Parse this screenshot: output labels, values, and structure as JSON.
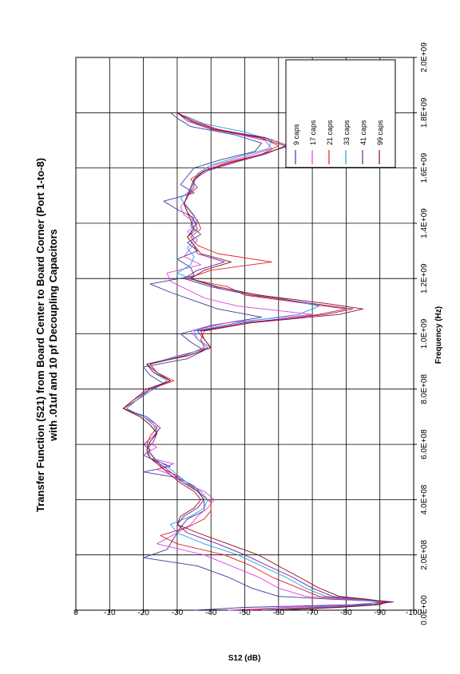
{
  "chart_data": {
    "type": "line",
    "title": "Transfer Function (S21) from Board Center to Board Corner (Port 1-to-8)",
    "subtitle": "with .01uf and 10 pf Decoupling Capacitors",
    "xlabel": "Frequency (Hz)",
    "ylabel": "S12 (dB)",
    "xlim": [
      0,
      2000000000
    ],
    "ylim": [
      -100,
      0
    ],
    "x_ticks": [
      {
        "value": 0,
        "label": "0.0E+00"
      },
      {
        "value": 200000000,
        "label": "2.0E+08"
      },
      {
        "value": 400000000,
        "label": "4.0E+08"
      },
      {
        "value": 600000000,
        "label": "6.0E+08"
      },
      {
        "value": 800000000,
        "label": "8.0E+08"
      },
      {
        "value": 1000000000,
        "label": "1.0E+09"
      },
      {
        "value": 1200000000,
        "label": "1.2E+09"
      },
      {
        "value": 1400000000,
        "label": "1.4E+09"
      },
      {
        "value": 1600000000,
        "label": "1.6E+09"
      },
      {
        "value": 1800000000,
        "label": "1.8E+09"
      },
      {
        "value": 2000000000,
        "label": "2.0E+09"
      }
    ],
    "y_ticks": [
      {
        "value": 0,
        "label": "0"
      },
      {
        "value": -10,
        "label": "-10"
      },
      {
        "value": -20,
        "label": "-20"
      },
      {
        "value": -30,
        "label": "-30"
      },
      {
        "value": -40,
        "label": "-40"
      },
      {
        "value": -50,
        "label": "-50"
      },
      {
        "value": -60,
        "label": "-60"
      },
      {
        "value": -70,
        "label": "-70"
      },
      {
        "value": -80,
        "label": "-80"
      },
      {
        "value": -90,
        "label": "-90"
      },
      {
        "value": -100,
        "label": "-100"
      }
    ],
    "grid": true,
    "legend_position": "top-right",
    "orientation": "rotated 90 degrees counter-clockwise",
    "series": [
      {
        "name": "9 caps",
        "color": "#3a3aa0",
        "x": [
          0,
          10000000,
          20000000,
          30000000,
          40000000,
          50000000,
          80000000,
          120000000,
          160000000,
          190000000,
          220000000,
          260000000,
          300000000,
          330000000,
          360000000,
          390000000,
          420000000,
          450000000,
          480000000,
          500000000,
          520000000,
          540000000,
          560000000,
          580000000,
          600000000,
          630000000,
          660000000,
          700000000,
          730000000,
          760000000,
          800000000,
          820000000,
          850000000,
          880000000,
          910000000,
          940000000,
          970000000,
          1000000000,
          1030000000,
          1060000000,
          1090000000,
          1120000000,
          1150000000,
          1180000000,
          1210000000,
          1240000000,
          1270000000,
          1300000000,
          1330000000,
          1360000000,
          1390000000,
          1420000000,
          1450000000,
          1480000000,
          1510000000,
          1540000000,
          1570000000,
          1600000000,
          1630000000,
          1660000000,
          1690000000,
          1720000000,
          1750000000,
          1780000000,
          1800000000
        ],
        "values": [
          -35,
          -50,
          -82,
          -93,
          -75,
          -60,
          -52,
          -45,
          -36,
          -20,
          -27,
          -29,
          -31,
          -33,
          -38,
          -38,
          -37,
          -35,
          -30,
          -20,
          -28,
          -24,
          -20,
          -22,
          -20,
          -23,
          -25,
          -21,
          -14,
          -18,
          -23,
          -26,
          -22,
          -20,
          -33,
          -38,
          -34,
          -31,
          -40,
          -55,
          -42,
          -35,
          -28,
          -22,
          -35,
          -34,
          -30,
          -36,
          -33,
          -37,
          -34,
          -35,
          -30,
          -26,
          -35,
          -31,
          -33,
          -35,
          -43,
          -53,
          -55,
          -47,
          -34,
          -30,
          -28
        ]
      },
      {
        "name": "17 caps",
        "color": "#e040e0",
        "x": [
          0,
          10000000,
          20000000,
          30000000,
          40000000,
          50000000,
          80000000,
          120000000,
          160000000,
          200000000,
          240000000,
          280000000,
          310000000,
          340000000,
          370000000,
          400000000,
          430000000,
          460000000,
          490000000,
          510000000,
          530000000,
          550000000,
          570000000,
          590000000,
          610000000,
          640000000,
          670000000,
          700000000,
          730000000,
          760000000,
          800000000,
          830000000,
          860000000,
          890000000,
          920000000,
          950000000,
          980000000,
          1010000000,
          1040000000,
          1070000000,
          1100000000,
          1130000000,
          1160000000,
          1190000000,
          1220000000,
          1250000000,
          1280000000,
          1310000000,
          1340000000,
          1370000000,
          1400000000,
          1430000000,
          1460000000,
          1490000000,
          1520000000,
          1550000000,
          1580000000,
          1610000000,
          1640000000,
          1670000000,
          1700000000,
          1730000000,
          1760000000,
          1790000000
        ],
        "values": [
          -45,
          -62,
          -85,
          -90,
          -78,
          -68,
          -60,
          -54,
          -46,
          -38,
          -24,
          -30,
          -34,
          -36,
          -39,
          -41,
          -38,
          -32,
          -28,
          -24,
          -29,
          -22,
          -21,
          -24,
          -21,
          -24,
          -24,
          -20,
          -15,
          -18,
          -22,
          -28,
          -24,
          -22,
          -30,
          -40,
          -36,
          -34,
          -45,
          -70,
          -48,
          -38,
          -33,
          -28,
          -27,
          -37,
          -32,
          -34,
          -36,
          -33,
          -36,
          -32,
          -31,
          -33,
          -34,
          -35,
          -37,
          -41,
          -50,
          -58,
          -56,
          -45,
          -36,
          -31
        ]
      },
      {
        "name": "21 caps",
        "color": "#e02020",
        "x": [
          0,
          10000000,
          20000000,
          30000000,
          40000000,
          50000000,
          80000000,
          120000000,
          160000000,
          200000000,
          240000000,
          270000000,
          300000000,
          330000000,
          360000000,
          390000000,
          420000000,
          450000000,
          480000000,
          510000000,
          540000000,
          570000000,
          600000000,
          630000000,
          660000000,
          700000000,
          730000000,
          760000000,
          800000000,
          830000000,
          860000000,
          890000000,
          920000000,
          950000000,
          980000000,
          1010000000,
          1040000000,
          1070000000,
          1090000000,
          1110000000,
          1140000000,
          1170000000,
          1200000000,
          1230000000,
          1260000000,
          1290000000,
          1320000000,
          1350000000,
          1380000000,
          1410000000,
          1440000000,
          1470000000,
          1500000000,
          1530000000,
          1560000000,
          1590000000,
          1620000000,
          1650000000,
          1680000000,
          1710000000,
          1740000000,
          1770000000,
          1800000000
        ],
        "values": [
          -50,
          -70,
          -88,
          -92,
          -80,
          -72,
          -66,
          -58,
          -52,
          -44,
          -30,
          -25,
          -33,
          -38,
          -40,
          -40,
          -37,
          -34,
          -31,
          -26,
          -24,
          -22,
          -21,
          -22,
          -24,
          -20,
          -14,
          -18,
          -22,
          -29,
          -24,
          -22,
          -32,
          -38,
          -37,
          -38,
          -52,
          -72,
          -80,
          -68,
          -50,
          -45,
          -33,
          -40,
          -58,
          -42,
          -36,
          -34,
          -37,
          -36,
          -34,
          -32,
          -33,
          -36,
          -34,
          -38,
          -45,
          -55,
          -60,
          -55,
          -42,
          -35,
          -30
        ]
      },
      {
        "name": "33 caps",
        "color": "#20a0e0",
        "x": [
          0,
          10000000,
          20000000,
          30000000,
          40000000,
          50000000,
          80000000,
          120000000,
          160000000,
          200000000,
          240000000,
          280000000,
          310000000,
          340000000,
          370000000,
          400000000,
          430000000,
          460000000,
          490000000,
          520000000,
          550000000,
          580000000,
          610000000,
          640000000,
          670000000,
          700000000,
          730000000,
          760000000,
          800000000,
          830000000,
          860000000,
          890000000,
          920000000,
          950000000,
          980000000,
          1010000000,
          1040000000,
          1070000000,
          1100000000,
          1130000000,
          1160000000,
          1190000000,
          1220000000,
          1250000000,
          1280000000,
          1310000000,
          1340000000,
          1370000000,
          1400000000,
          1430000000,
          1460000000,
          1490000000,
          1520000000,
          1550000000,
          1580000000,
          1610000000,
          1640000000,
          1670000000,
          1700000000,
          1730000000,
          1760000000,
          1790000000
        ],
        "values": [
          -55,
          -72,
          -86,
          -90,
          -82,
          -74,
          -68,
          -62,
          -55,
          -48,
          -38,
          -30,
          -28,
          -34,
          -38,
          -39,
          -37,
          -33,
          -30,
          -27,
          -23,
          -21,
          -22,
          -24,
          -23,
          -20,
          -15,
          -18,
          -23,
          -27,
          -23,
          -21,
          -31,
          -39,
          -36,
          -35,
          -48,
          -66,
          -72,
          -60,
          -44,
          -36,
          -30,
          -34,
          -35,
          -33,
          -35,
          -34,
          -36,
          -35,
          -33,
          -31,
          -34,
          -35,
          -36,
          -40,
          -48,
          -57,
          -58,
          -50,
          -38,
          -32
        ]
      },
      {
        "name": "41 caps",
        "color": "#7a1aa0",
        "x": [
          0,
          10000000,
          20000000,
          30000000,
          40000000,
          50000000,
          80000000,
          120000000,
          160000000,
          200000000,
          240000000,
          280000000,
          310000000,
          340000000,
          370000000,
          400000000,
          430000000,
          460000000,
          490000000,
          520000000,
          550000000,
          580000000,
          610000000,
          640000000,
          670000000,
          700000000,
          730000000,
          760000000,
          800000000,
          830000000,
          860000000,
          890000000,
          920000000,
          950000000,
          980000000,
          1010000000,
          1040000000,
          1070000000,
          1090000000,
          1110000000,
          1140000000,
          1170000000,
          1200000000,
          1230000000,
          1260000000,
          1290000000,
          1320000000,
          1350000000,
          1380000000,
          1410000000,
          1440000000,
          1470000000,
          1500000000,
          1530000000,
          1560000000,
          1590000000,
          1620000000,
          1650000000,
          1680000000,
          1710000000,
          1740000000,
          1770000000,
          1800000000
        ],
        "values": [
          -58,
          -76,
          -88,
          -94,
          -84,
          -76,
          -70,
          -64,
          -57,
          -50,
          -42,
          -33,
          -30,
          -32,
          -36,
          -38,
          -36,
          -32,
          -29,
          -26,
          -22,
          -21,
          -23,
          -24,
          -22,
          -19,
          -14,
          -17,
          -22,
          -28,
          -24,
          -21,
          -33,
          -40,
          -38,
          -36,
          -50,
          -74,
          -82,
          -70,
          -52,
          -40,
          -32,
          -36,
          -44,
          -36,
          -35,
          -33,
          -36,
          -35,
          -33,
          -32,
          -33,
          -35,
          -35,
          -39,
          -47,
          -56,
          -62,
          -54,
          -40,
          -33,
          -30
        ]
      },
      {
        "name": "99 caps",
        "color": "#8a1010",
        "x": [
          0,
          10000000,
          20000000,
          30000000,
          40000000,
          50000000,
          80000000,
          120000000,
          160000000,
          200000000,
          240000000,
          280000000,
          310000000,
          340000000,
          370000000,
          400000000,
          430000000,
          460000000,
          490000000,
          520000000,
          550000000,
          580000000,
          610000000,
          640000000,
          670000000,
          700000000,
          730000000,
          760000000,
          800000000,
          830000000,
          860000000,
          890000000,
          920000000,
          950000000,
          980000000,
          1010000000,
          1040000000,
          1070000000,
          1090000000,
          1110000000,
          1140000000,
          1170000000,
          1200000000,
          1230000000,
          1260000000,
          1290000000,
          1320000000,
          1350000000,
          1380000000,
          1410000000,
          1440000000,
          1470000000,
          1500000000,
          1530000000,
          1560000000,
          1590000000,
          1620000000,
          1650000000,
          1680000000,
          1710000000,
          1740000000,
          1770000000,
          1800000000
        ],
        "values": [
          -60,
          -78,
          -90,
          -92,
          -86,
          -78,
          -72,
          -66,
          -60,
          -54,
          -45,
          -36,
          -30,
          -31,
          -35,
          -37,
          -35,
          -31,
          -28,
          -25,
          -22,
          -21,
          -22,
          -24,
          -22,
          -19,
          -14,
          -17,
          -21,
          -28,
          -23,
          -21,
          -33,
          -40,
          -38,
          -37,
          -52,
          -78,
          -85,
          -74,
          -54,
          -42,
          -34,
          -38,
          -46,
          -37,
          -35,
          -33,
          -35,
          -34,
          -33,
          -32,
          -33,
          -34,
          -35,
          -38,
          -46,
          -55,
          -63,
          -56,
          -41,
          -34,
          -30
        ]
      }
    ]
  }
}
